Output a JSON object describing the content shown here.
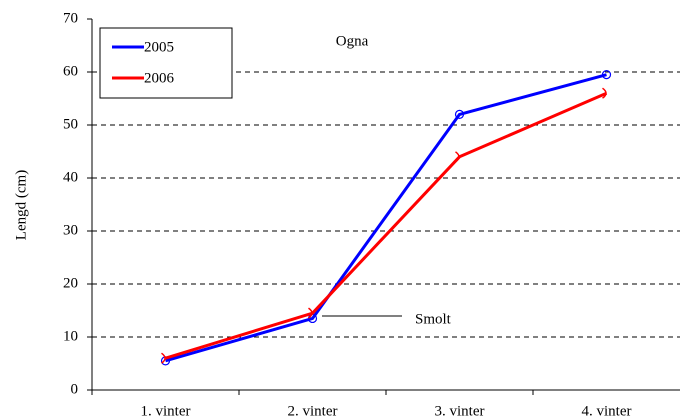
{
  "chart_data": {
    "type": "line",
    "title": "Ogna",
    "y_label": "Lengd (cm)",
    "categories": [
      "1. vinter",
      "2. vinter",
      "3. vinter",
      "4. vinter"
    ],
    "series": [
      {
        "name": "2005",
        "color": "#0000ff",
        "values": [
          5.5,
          13.5,
          52,
          59.5
        ]
      },
      {
        "name": "2006",
        "color": "#ff0000",
        "values": [
          6,
          14.5,
          44,
          56
        ]
      }
    ],
    "annotation": "Smolt",
    "ylim": [
      0,
      70
    ],
    "yticks": [
      0,
      10,
      20,
      30,
      40,
      50,
      60,
      70
    ],
    "grid": true,
    "legend": "upper left"
  }
}
